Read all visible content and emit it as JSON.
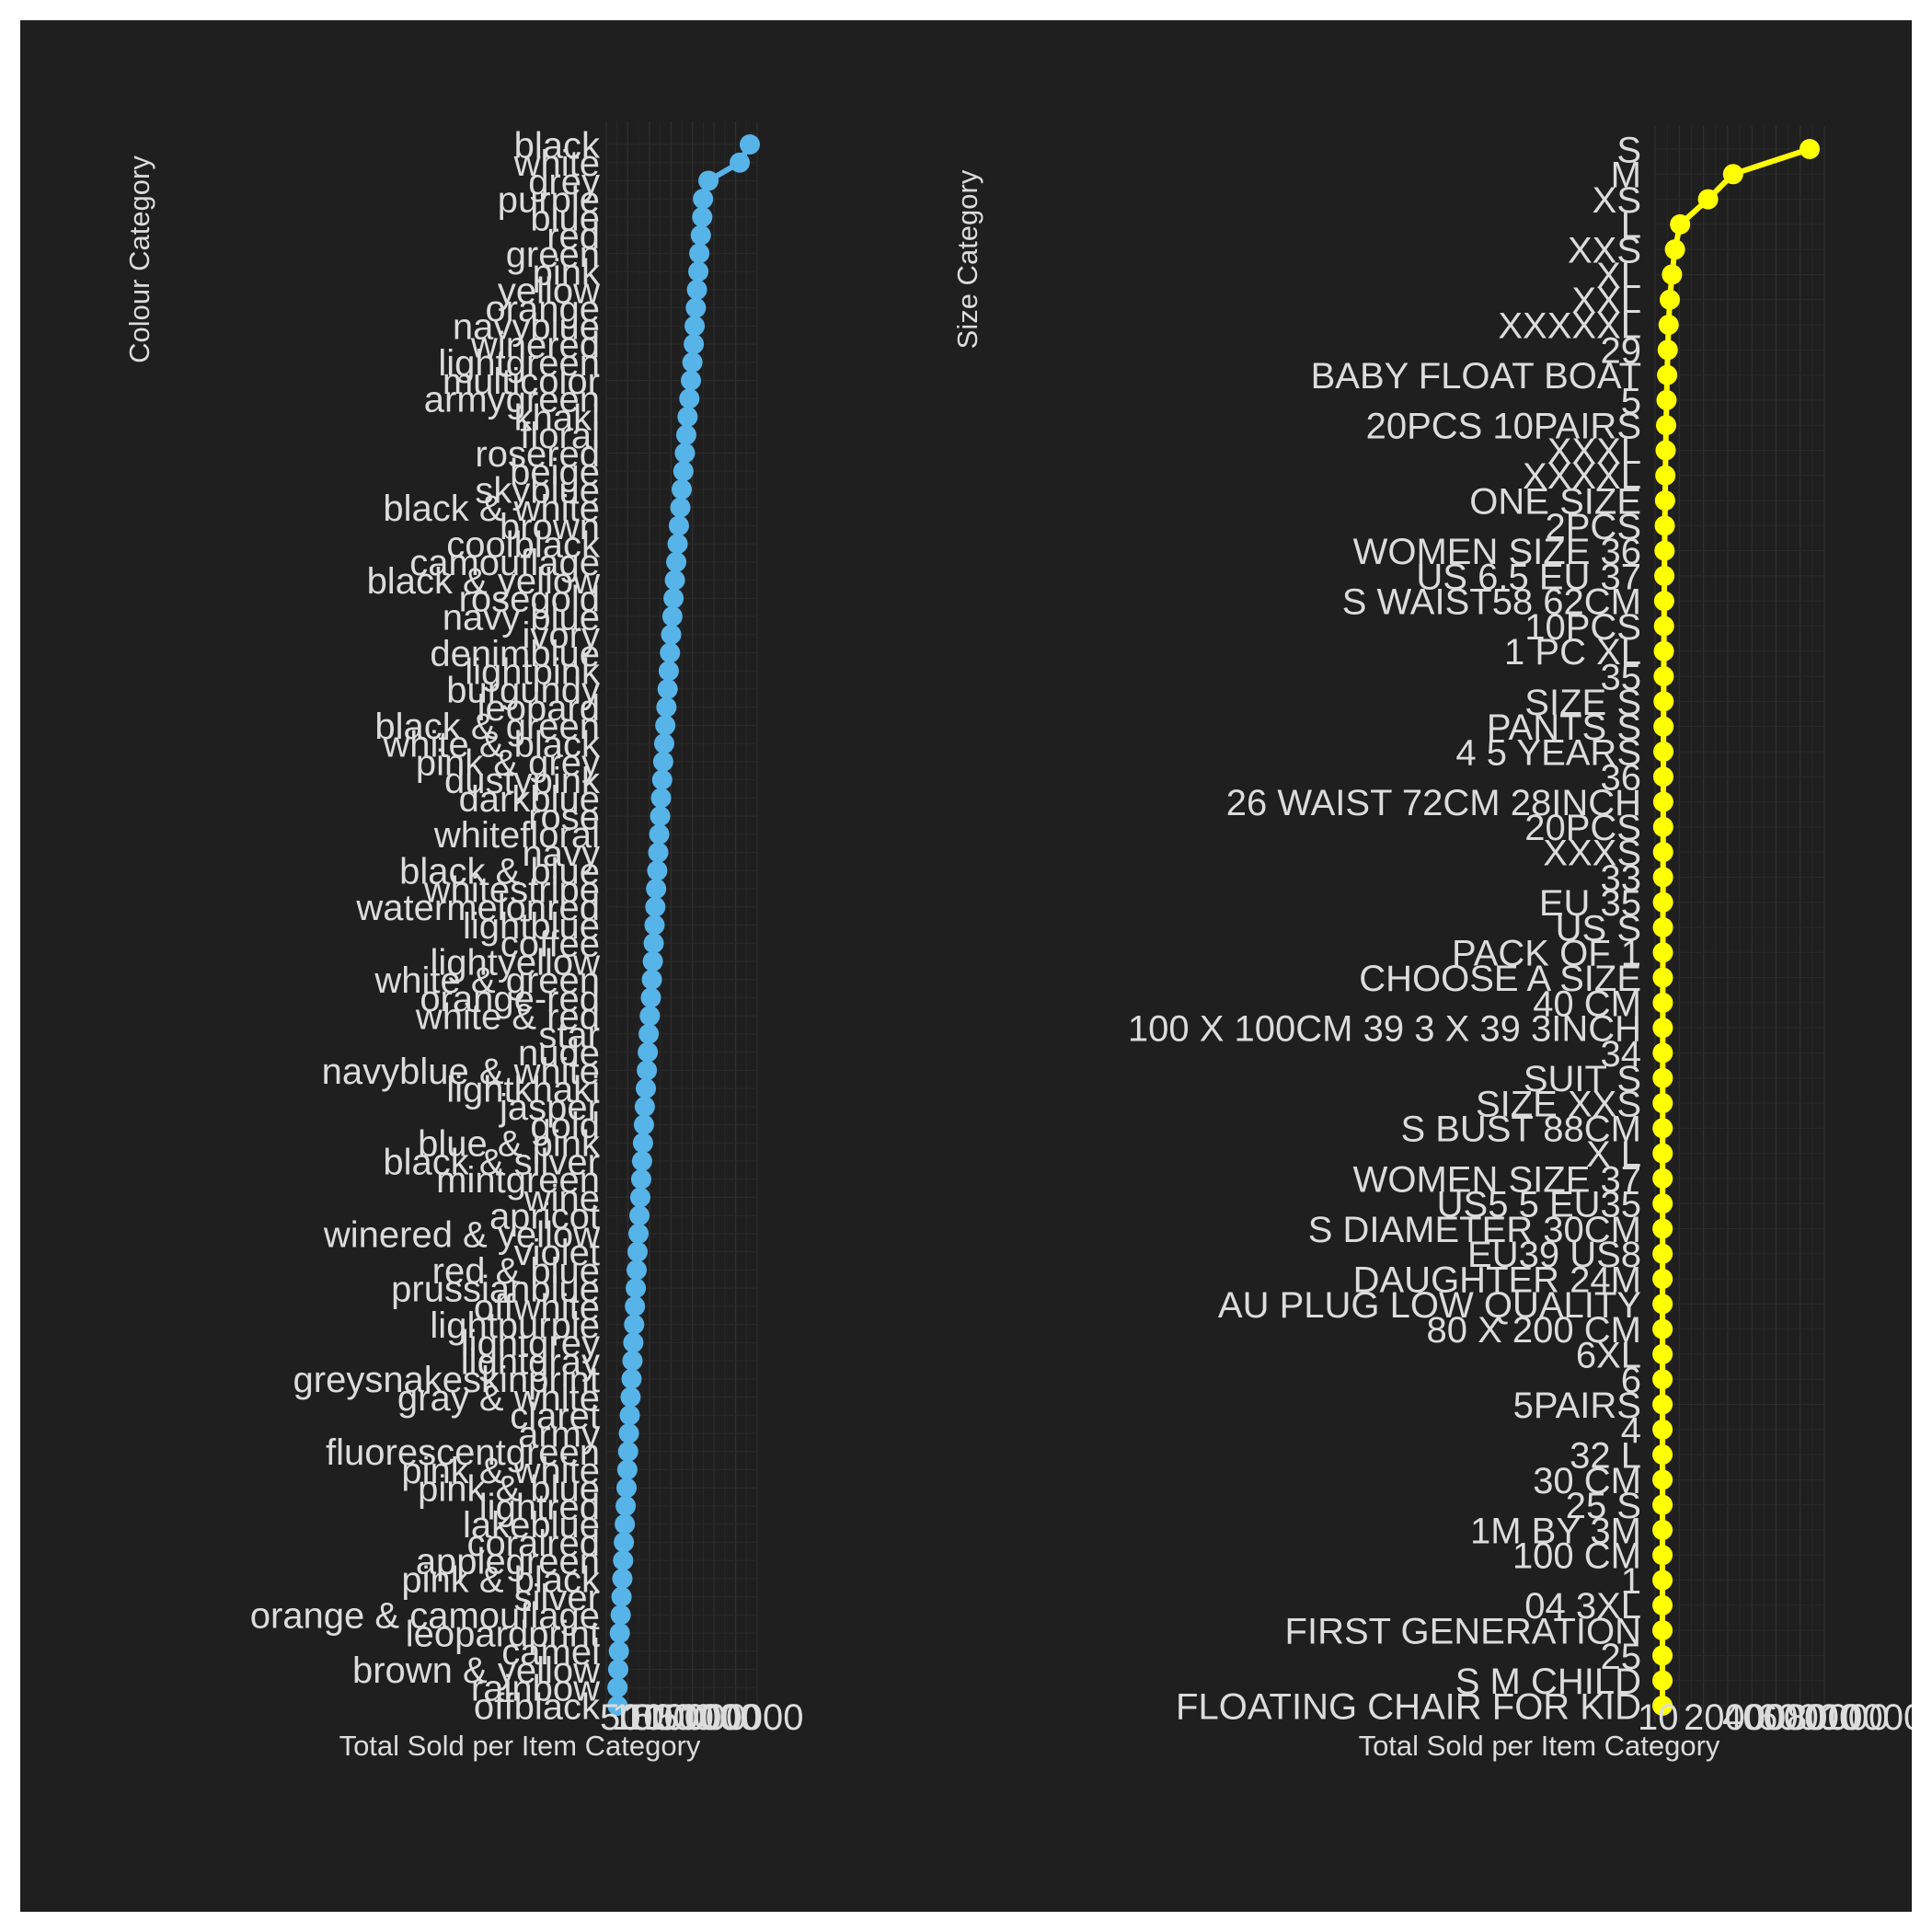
{
  "chart_data": [
    {
      "type": "line",
      "orientation": "horizontal",
      "ylabel": "Colour Category",
      "xlabel": "Total Sold per Item Category",
      "x_tick_labels": [
        "50",
        "100",
        "1000",
        "5000",
        "10000",
        "50000",
        "100000"
      ],
      "x_scale": "log",
      "color": "#56b4e9",
      "grid": true,
      "categories": [
        "black",
        "white",
        "grey",
        "purple",
        "blue",
        "red",
        "green",
        "pink",
        "yellow",
        "orange",
        "navyblue",
        "winered",
        "lightgreen",
        "multicolor",
        "armygreen",
        "khaki",
        "floral",
        "rosered",
        "beige",
        "skyblue",
        "black & white",
        "brown",
        "coolblack",
        "camouflage",
        "black & yellow",
        "rosegold",
        "navy blue",
        "ivory",
        "denimblue",
        "lightpink",
        "burgundy",
        "leopard",
        "black & green",
        "white & black",
        "pink & grey",
        "dustypink",
        "darkblue",
        "rose",
        "whitefloral",
        "navy",
        "black & blue",
        "whitestripe",
        "watermelonred",
        "lightblue",
        "coffee",
        "lightyellow",
        "white & green",
        "orange-red",
        "white & red",
        "star",
        "nude",
        "navyblue & white",
        "lightkhaki",
        "jasper",
        "gold",
        "blue & pink",
        "black & silver",
        "mintgreen",
        "wine",
        "apricot",
        "winered & yellow",
        "violet",
        "red & blue",
        "prussianblue",
        "offwhite",
        "lightpurple",
        "lightgrey",
        "lightgray",
        "greysnakeskinprint",
        "gray & white",
        "claret",
        "army",
        "fluorescentgreen",
        "pink & white",
        "pink & blue",
        "lightred",
        "lakeblue",
        "coralred",
        "applegreen",
        "pink & black",
        "silver",
        "orange & camouflage",
        "leopardprint",
        "camel",
        "brown & yellow",
        "rainbow",
        "offblack"
      ],
      "values": [
        100000,
        56000,
        9300,
        6800,
        6500,
        6000,
        5500,
        5200,
        4800,
        4500,
        4200,
        4000,
        3700,
        3400,
        3100,
        2800,
        2600,
        2400,
        2200,
        2000,
        1850,
        1700,
        1580,
        1460,
        1350,
        1250,
        1170,
        1090,
        1020,
        950,
        890,
        830,
        780,
        730,
        690,
        650,
        610,
        580,
        550,
        520,
        490,
        460,
        440,
        420,
        400,
        380,
        360,
        340,
        320,
        300,
        285,
        270,
        255,
        240,
        228,
        216,
        205,
        195,
        185,
        176,
        167,
        158,
        150,
        143,
        136,
        130,
        124,
        118,
        112,
        106,
        101,
        96,
        92,
        88,
        84,
        80,
        76,
        72,
        69,
        66,
        63,
        60,
        57,
        54,
        52,
        50,
        50
      ]
    },
    {
      "type": "line",
      "orientation": "horizontal",
      "ylabel": "Size Category",
      "xlabel": "Total Sold per Item Category",
      "x_tick_labels": [
        "10",
        "20000",
        "40000",
        "60000",
        "80000",
        "100000"
      ],
      "x_scale": "linear",
      "color": "#ffff00",
      "grid": true,
      "categories": [
        "S",
        "M",
        "XS",
        "L",
        "XXS",
        "XL",
        "XXL",
        "XXXXXL",
        "29",
        "BABY FLOAT BOAT",
        "5",
        "20PCS 10PAIRS",
        "XXXL",
        "XXXXL",
        "ONE SIZE",
        "2PCS",
        "WOMEN SIZE 36",
        "US 6.5 EU 37",
        "S  WAIST58 62CM",
        "10PCS",
        "1 PC   XL",
        "35",
        "SIZE S",
        "PANTS S",
        "4 5 YEARS",
        "36",
        "26 WAIST 72CM 28INCH",
        "20PCS",
        "XXXS",
        "33",
        "EU 35",
        "US S",
        "PACK OF 1",
        "CHOOSE A SIZE",
        "40 CM",
        "100 X 100CM 39 3 X 39 3INCH",
        "34",
        "SUIT S",
        "SIZE  XXS",
        "S BUST 88CM",
        "X   L",
        "WOMEN SIZE 37",
        "US5 5 EU35",
        "S DIAMETER 30CM",
        "EU39 US8",
        "DAUGHTER 24M",
        "AU PLUG LOW QUALITY",
        "80 X 200 CM",
        "6XL",
        "6",
        "5PAIRS",
        "4",
        "32 L",
        "30 CM",
        "25 S",
        "1M BY 3M",
        "100 CM",
        "1",
        "04 3XL",
        "FIRST  GENERATION",
        "25",
        "S M CHILD",
        "FLOATING CHAIR FOR KID"
      ],
      "values": [
        100000,
        48000,
        31000,
        12000,
        8500,
        6500,
        5000,
        4200,
        3600,
        3200,
        2800,
        2500,
        2200,
        2000,
        1800,
        1600,
        1450,
        1300,
        1180,
        1070,
        970,
        880,
        800,
        730,
        660,
        600,
        545,
        495,
        450,
        410,
        375,
        340,
        310,
        280,
        255,
        232,
        210,
        190,
        172,
        156,
        142,
        129,
        117,
        106,
        96,
        87,
        79,
        72,
        65,
        59,
        53,
        48,
        43,
        39,
        35,
        31,
        28,
        25,
        22,
        19,
        16,
        13,
        10
      ]
    }
  ]
}
